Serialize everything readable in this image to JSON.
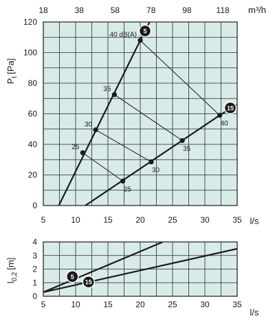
{
  "chart_data": [
    {
      "type": "line",
      "xlabel": "l/s",
      "x2label": "m³/h",
      "ylabel_main": "P",
      "ylabel_sub": "t",
      "ylabel_unit": "[Pa]",
      "xlim": [
        5,
        35
      ],
      "ylim": [
        0,
        120
      ],
      "x_ticks": [
        5,
        10,
        15,
        20,
        25,
        30,
        35
      ],
      "y_ticks": [
        0,
        20,
        40,
        60,
        80,
        100,
        120
      ],
      "x2_ticks": [
        "18",
        "38",
        "58",
        "78",
        "98",
        "118"
      ],
      "x2_tick_ls": [
        5,
        10.56,
        16.11,
        21.67,
        27.22,
        32.78
      ],
      "grid": true,
      "series": [
        {
          "name": "5",
          "x": [
            7.4,
            20.0,
            23.0
          ],
          "y": [
            0,
            108,
            133
          ]
        },
        {
          "name": "15",
          "x": [
            11.5,
            32.3,
            34.9
          ],
          "y": [
            0,
            59,
            66
          ]
        }
      ],
      "points": [
        {
          "series": "5",
          "x": 11.1,
          "y": 34.5,
          "label": "25"
        },
        {
          "series": "5",
          "x": 13.1,
          "y": 49.5,
          "label": "30"
        },
        {
          "series": "5",
          "x": 16.0,
          "y": 72.5,
          "label": "35"
        },
        {
          "series": "5",
          "x": 20.0,
          "y": 108,
          "label": "40 dB(A)"
        },
        {
          "series": "15",
          "x": 17.3,
          "y": 16,
          "label": "25"
        },
        {
          "series": "15",
          "x": 21.7,
          "y": 28.5,
          "label": "30"
        },
        {
          "series": "15",
          "x": 26.5,
          "y": 42.5,
          "label": "35"
        },
        {
          "series": "15",
          "x": 32.3,
          "y": 59,
          "label": "40"
        }
      ],
      "connectors": [
        [
          0,
          4
        ],
        [
          1,
          5
        ],
        [
          2,
          6
        ],
        [
          3,
          7
        ]
      ]
    },
    {
      "type": "line",
      "xlabel": "l/s",
      "ylabel_main": "l",
      "ylabel_sub": "0,2",
      "ylabel_unit": "[m]",
      "xlim": [
        5,
        35
      ],
      "ylim": [
        0,
        4
      ],
      "x_ticks": [
        5,
        10,
        15,
        20,
        25,
        30,
        35
      ],
      "y_ticks": [
        0,
        1,
        2,
        3,
        4
      ],
      "grid": true,
      "series": [
        {
          "name": "5",
          "x": [
            5,
            23.5
          ],
          "y": [
            0.3,
            4
          ]
        },
        {
          "name": "15",
          "x": [
            5,
            35
          ],
          "y": [
            0.3,
            3.5
          ]
        }
      ],
      "badges": [
        {
          "series": "5",
          "x": 9.5,
          "y": 1.45
        },
        {
          "series": "15",
          "x": 12.0,
          "y": 1.05
        }
      ]
    }
  ]
}
